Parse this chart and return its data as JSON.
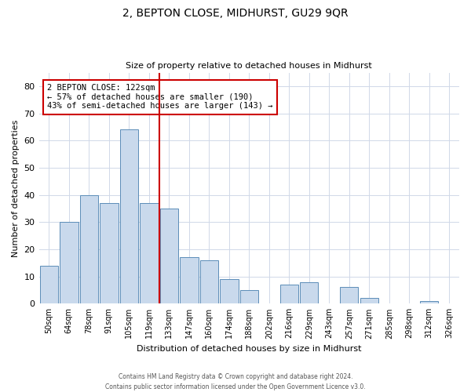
{
  "title": "2, BEPTON CLOSE, MIDHURST, GU29 9QR",
  "subtitle": "Size of property relative to detached houses in Midhurst",
  "xlabel": "Distribution of detached houses by size in Midhurst",
  "ylabel": "Number of detached properties",
  "bar_labels": [
    "50sqm",
    "64sqm",
    "78sqm",
    "91sqm",
    "105sqm",
    "119sqm",
    "133sqm",
    "147sqm",
    "160sqm",
    "174sqm",
    "188sqm",
    "202sqm",
    "216sqm",
    "229sqm",
    "243sqm",
    "257sqm",
    "271sqm",
    "285sqm",
    "298sqm",
    "312sqm",
    "326sqm"
  ],
  "bar_values": [
    14,
    30,
    40,
    37,
    64,
    37,
    35,
    17,
    16,
    9,
    5,
    0,
    7,
    8,
    0,
    6,
    2,
    0,
    0,
    1,
    0
  ],
  "bar_color": "#c9d9ec",
  "bar_edge_color": "#5b8db8",
  "property_line_index": 5,
  "property_line_color": "#cc0000",
  "annotation_text": "2 BEPTON CLOSE: 122sqm\n← 57% of detached houses are smaller (190)\n43% of semi-detached houses are larger (143) →",
  "annotation_box_color": "#ffffff",
  "annotation_box_edge_color": "#cc0000",
  "ylim": [
    0,
    85
  ],
  "yticks": [
    0,
    10,
    20,
    30,
    40,
    50,
    60,
    70,
    80
  ],
  "footer_line1": "Contains HM Land Registry data © Crown copyright and database right 2024.",
  "footer_line2": "Contains public sector information licensed under the Open Government Licence v3.0.",
  "background_color": "#ffffff",
  "grid_color": "#d0d8e8",
  "title_fontsize": 10,
  "subtitle_fontsize": 8,
  "annotation_fontsize": 7.5,
  "ylabel_fontsize": 8,
  "xlabel_fontsize": 8,
  "ytick_fontsize": 8,
  "xtick_fontsize": 7
}
